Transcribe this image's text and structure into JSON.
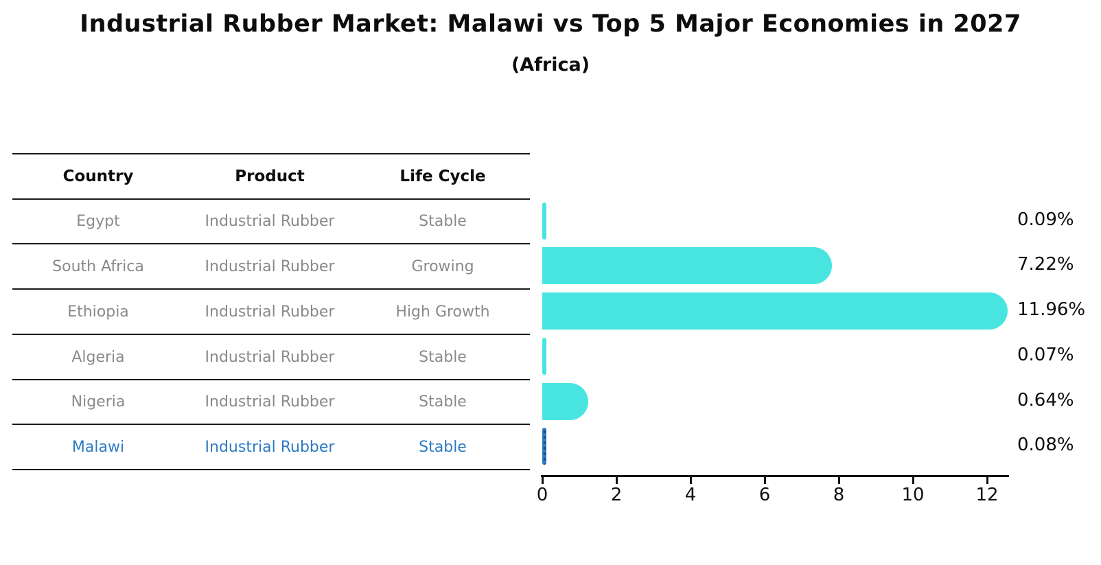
{
  "title": "Industrial Rubber Market: Malawi vs Top 5 Major Economies in 2027",
  "subtitle": "(Africa)",
  "table": {
    "headers": [
      "Country",
      "Product",
      "Life Cycle"
    ],
    "rows": [
      {
        "country": "Egypt",
        "product": "Industrial Rubber",
        "life_cycle": "Stable",
        "highlight": false
      },
      {
        "country": "South Africa",
        "product": "Industrial Rubber",
        "life_cycle": "Growing",
        "highlight": false
      },
      {
        "country": "Ethiopia",
        "product": "Industrial Rubber",
        "life_cycle": "High Growth",
        "highlight": false
      },
      {
        "country": "Algeria",
        "product": "Industrial Rubber",
        "life_cycle": "Stable",
        "highlight": false
      },
      {
        "country": "Nigeria",
        "product": "Industrial Rubber",
        "life_cycle": "Stable",
        "highlight": false
      },
      {
        "country": "Malawi",
        "product": "Industrial Rubber",
        "life_cycle": "Stable",
        "highlight": true
      }
    ]
  },
  "chart_data": {
    "type": "bar",
    "orientation": "horizontal",
    "title": "Industrial Rubber Market: Malawi vs Top 5 Major Economies in 2027",
    "subtitle": "(Africa)",
    "categories": [
      "Egypt",
      "South Africa",
      "Ethiopia",
      "Algeria",
      "Nigeria",
      "Malawi"
    ],
    "values": [
      0.09,
      7.22,
      11.96,
      0.07,
      0.64,
      0.08
    ],
    "value_labels": [
      "0.09%",
      "7.22%",
      "11.96%",
      "0.07%",
      "0.64%",
      "0.08%"
    ],
    "x_ticks": [
      0,
      2,
      4,
      6,
      8,
      10,
      12
    ],
    "xlim": [
      0,
      12.6
    ],
    "grid": false,
    "legend": "none",
    "bar_color": "#48e5e0",
    "highlight_color": "#2e7bc4",
    "highlight_index": 5
  },
  "colors": {
    "bar_turquoise": "#48e5e0",
    "accent_blue": "#2e7bc4",
    "text_black": "#0d0d0d",
    "text_gray": "#8a8a8a",
    "line_black": "#1a1a1a"
  }
}
